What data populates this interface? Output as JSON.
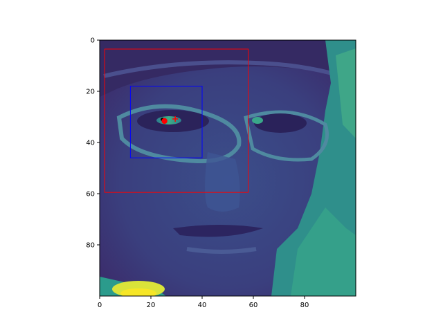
{
  "chart_data": {
    "type": "image",
    "title": "",
    "xlabel": "",
    "ylabel": "",
    "xlim": [
      0,
      100
    ],
    "ylim": [
      100,
      0
    ],
    "image_description_colormap": "viridis",
    "x_ticks": [
      0,
      20,
      40,
      60,
      80
    ],
    "x_tick_labels": [
      "0",
      "20",
      "40",
      "60",
      "80"
    ],
    "y_ticks": [
      0,
      20,
      40,
      60,
      80
    ],
    "y_tick_labels": [
      "0",
      "20",
      "40",
      "60",
      "80"
    ],
    "rectangles": [
      {
        "name": "outer-box",
        "color": "#ff0000",
        "x0": 2,
        "y0": 3.5,
        "x1": 58,
        "y1": 59.5
      },
      {
        "name": "inner-box",
        "color": "#0000ff",
        "x0": 12,
        "y0": 18,
        "x1": 40,
        "y1": 46
      }
    ],
    "points": [
      {
        "name": "black-point",
        "marker": "dot-small",
        "color": "#000000",
        "x": 24.5,
        "y": 31
      },
      {
        "name": "red-point",
        "marker": "dot",
        "color": "#ff0000",
        "x": 25.3,
        "y": 31.6
      },
      {
        "name": "red-plus",
        "marker": "plus",
        "color": "#ff0000",
        "x": 29.5,
        "y": 30.8
      }
    ]
  }
}
